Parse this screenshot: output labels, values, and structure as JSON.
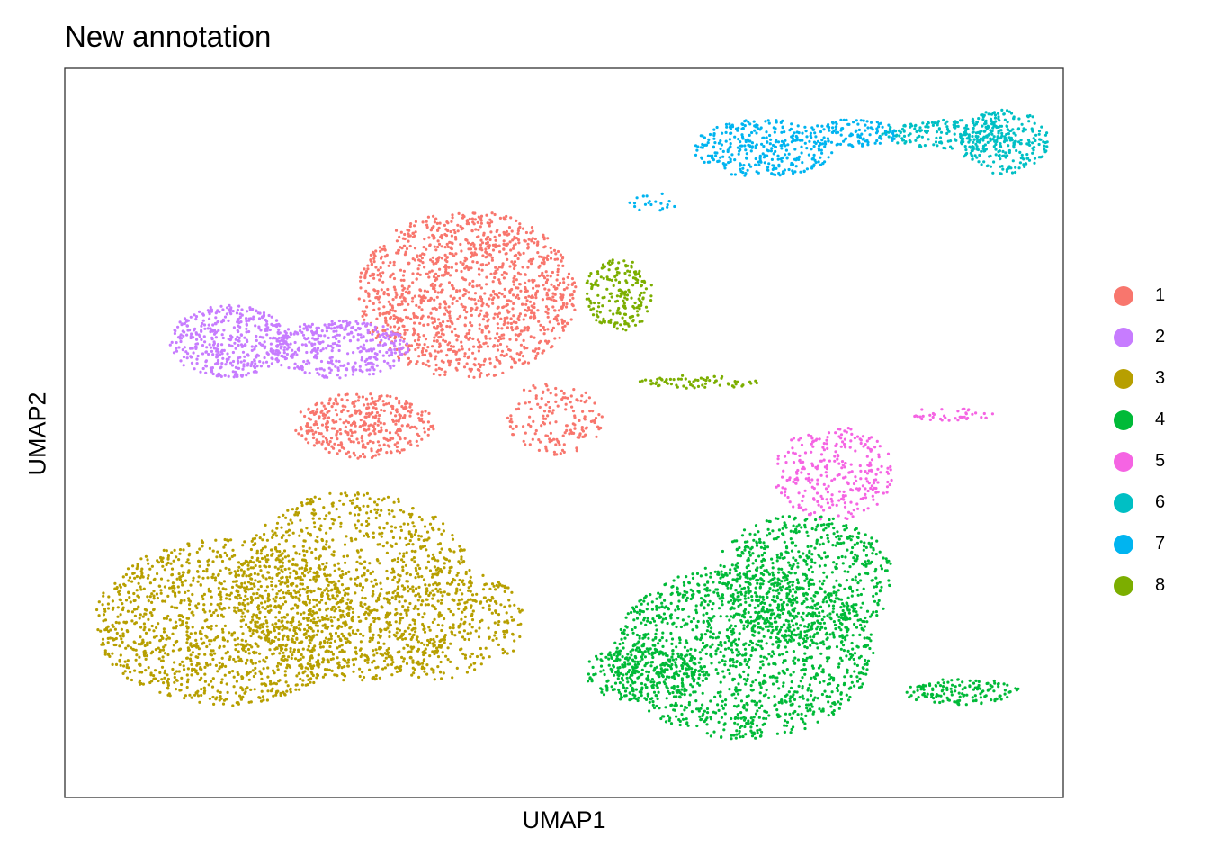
{
  "chart_data": {
    "type": "scatter",
    "title": "New annotation",
    "xlabel": "UMAP1",
    "ylabel": "UMAP2",
    "xlim": [
      0,
      100
    ],
    "ylim": [
      0,
      100
    ],
    "axis_ticks": false,
    "grid": false,
    "legend": {
      "position": "right",
      "entries": [
        {
          "label": "1",
          "color": "#F8766D"
        },
        {
          "label": "2",
          "color": "#C77CFF"
        },
        {
          "label": "3",
          "color": "#B79F00"
        },
        {
          "label": "4",
          "color": "#00BA38"
        },
        {
          "label": "5",
          "color": "#F564E3"
        },
        {
          "label": "6",
          "color": "#00BFC4"
        },
        {
          "label": "7",
          "color": "#00B4F0"
        },
        {
          "label": "8",
          "color": "#7CAE00"
        }
      ]
    },
    "series": [
      {
        "name": "1",
        "color": "#F8766D",
        "regions": [
          {
            "cx": 40.3,
            "cy": 69.0,
            "rx": 11.0,
            "ry": 11.5,
            "n": 1300
          },
          {
            "cx": 30.0,
            "cy": 51.0,
            "rx": 7.0,
            "ry": 4.5,
            "n": 380
          },
          {
            "cx": 49.0,
            "cy": 52.0,
            "rx": 5.0,
            "ry": 5.0,
            "n": 160
          }
        ]
      },
      {
        "name": "2",
        "color": "#C77CFF",
        "regions": [
          {
            "cx": 16.5,
            "cy": 62.5,
            "rx": 6.0,
            "ry": 5.0,
            "n": 420
          },
          {
            "cx": 27.5,
            "cy": 61.5,
            "rx": 7.0,
            "ry": 4.0,
            "n": 380
          }
        ]
      },
      {
        "name": "3",
        "color": "#B79F00",
        "regions": [
          {
            "cx": 16.0,
            "cy": 24.0,
            "rx": 13.0,
            "ry": 11.5,
            "n": 1300
          },
          {
            "cx": 29.0,
            "cy": 29.0,
            "rx": 12.0,
            "ry": 13.0,
            "n": 1000
          },
          {
            "cx": 38.0,
            "cy": 24.0,
            "rx": 8.0,
            "ry": 8.0,
            "n": 350
          }
        ]
      },
      {
        "name": "4",
        "color": "#00BA38",
        "regions": [
          {
            "cx": 68.0,
            "cy": 20.0,
            "rx": 13.0,
            "ry": 12.0,
            "n": 1400
          },
          {
            "cx": 74.0,
            "cy": 30.0,
            "rx": 9.0,
            "ry": 9.0,
            "n": 600
          },
          {
            "cx": 58.0,
            "cy": 17.0,
            "rx": 6.0,
            "ry": 4.0,
            "n": 250
          },
          {
            "cx": 90.0,
            "cy": 14.5,
            "rx": 6.0,
            "ry": 1.8,
            "n": 140
          }
        ]
      },
      {
        "name": "5",
        "color": "#F564E3",
        "regions": [
          {
            "cx": 77.0,
            "cy": 44.5,
            "rx": 6.0,
            "ry": 6.5,
            "n": 280
          },
          {
            "cx": 88.5,
            "cy": 52.5,
            "rx": 4.5,
            "ry": 0.9,
            "n": 40
          }
        ]
      },
      {
        "name": "6",
        "color": "#00BFC4",
        "regions": [
          {
            "cx": 88.5,
            "cy": 91.0,
            "rx": 7.0,
            "ry": 2.0,
            "n": 170
          },
          {
            "cx": 94.0,
            "cy": 90.0,
            "rx": 4.5,
            "ry": 4.5,
            "n": 260
          }
        ]
      },
      {
        "name": "7",
        "color": "#00B4F0",
        "regions": [
          {
            "cx": 70.0,
            "cy": 89.0,
            "rx": 7.0,
            "ry": 4.0,
            "n": 330
          },
          {
            "cx": 79.0,
            "cy": 91.0,
            "rx": 4.5,
            "ry": 2.0,
            "n": 110
          },
          {
            "cx": 59.0,
            "cy": 81.5,
            "rx": 2.5,
            "ry": 1.5,
            "n": 20
          }
        ]
      },
      {
        "name": "8",
        "color": "#7CAE00",
        "regions": [
          {
            "cx": 55.5,
            "cy": 69.0,
            "rx": 3.5,
            "ry": 5.0,
            "n": 200
          },
          {
            "cx": 63.5,
            "cy": 57.0,
            "rx": 6.0,
            "ry": 0.9,
            "n": 70
          }
        ]
      }
    ]
  }
}
